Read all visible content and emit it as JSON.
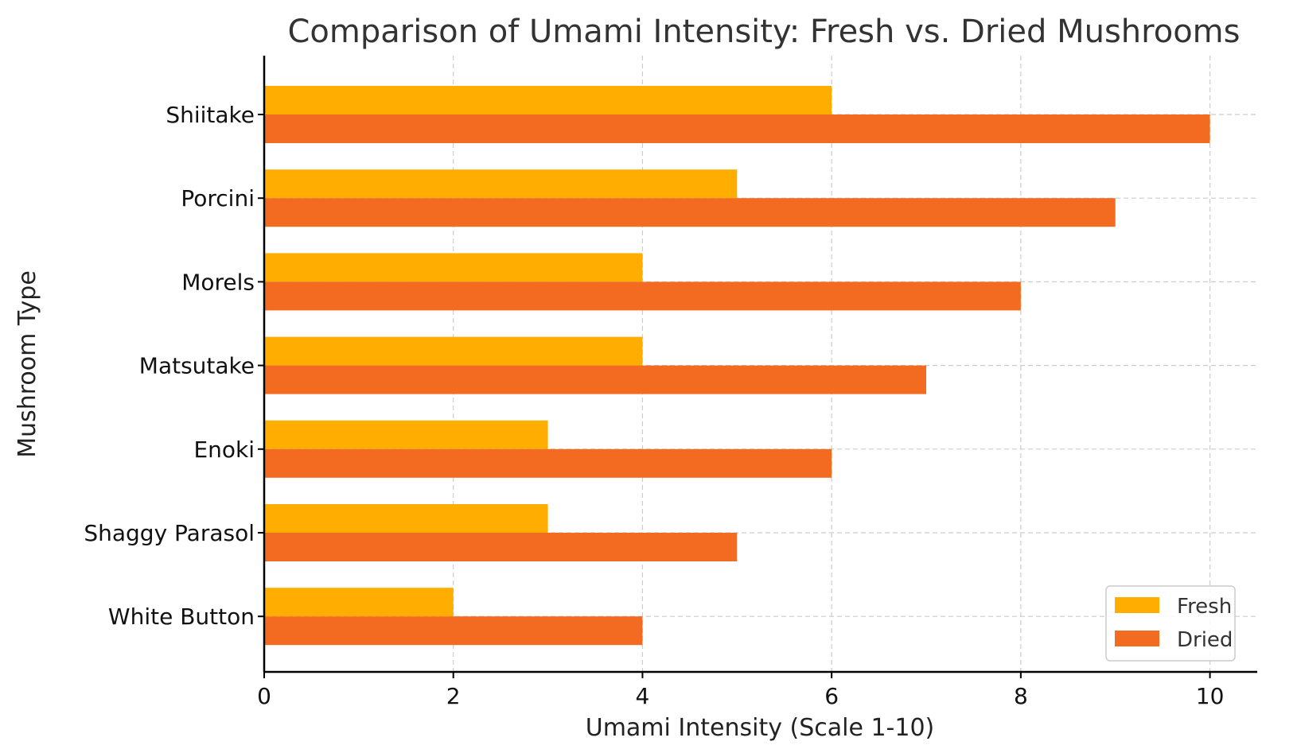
{
  "chart_data": {
    "type": "bar",
    "orientation": "horizontal",
    "title": "Comparison of Umami Intensity: Fresh vs. Dried Mushrooms",
    "xlabel": "Umami Intensity (Scale 1-10)",
    "ylabel": "Mushroom Type",
    "xlim": [
      0,
      10.5
    ],
    "xticks": [
      0,
      2,
      4,
      6,
      8,
      10
    ],
    "categories": [
      "Shiitake",
      "Porcini",
      "Morels",
      "Matsutake",
      "Enoki",
      "Shaggy Parasol",
      "White Button"
    ],
    "series": [
      {
        "name": "Fresh",
        "color": "#FFAE00",
        "values": [
          6,
          5,
          4,
          4,
          3,
          3,
          2
        ]
      },
      {
        "name": "Dried",
        "color": "#F26B21",
        "values": [
          10,
          9,
          8,
          7,
          6,
          5,
          4
        ]
      }
    ],
    "grid": true,
    "legend_position": "bottom-right"
  }
}
